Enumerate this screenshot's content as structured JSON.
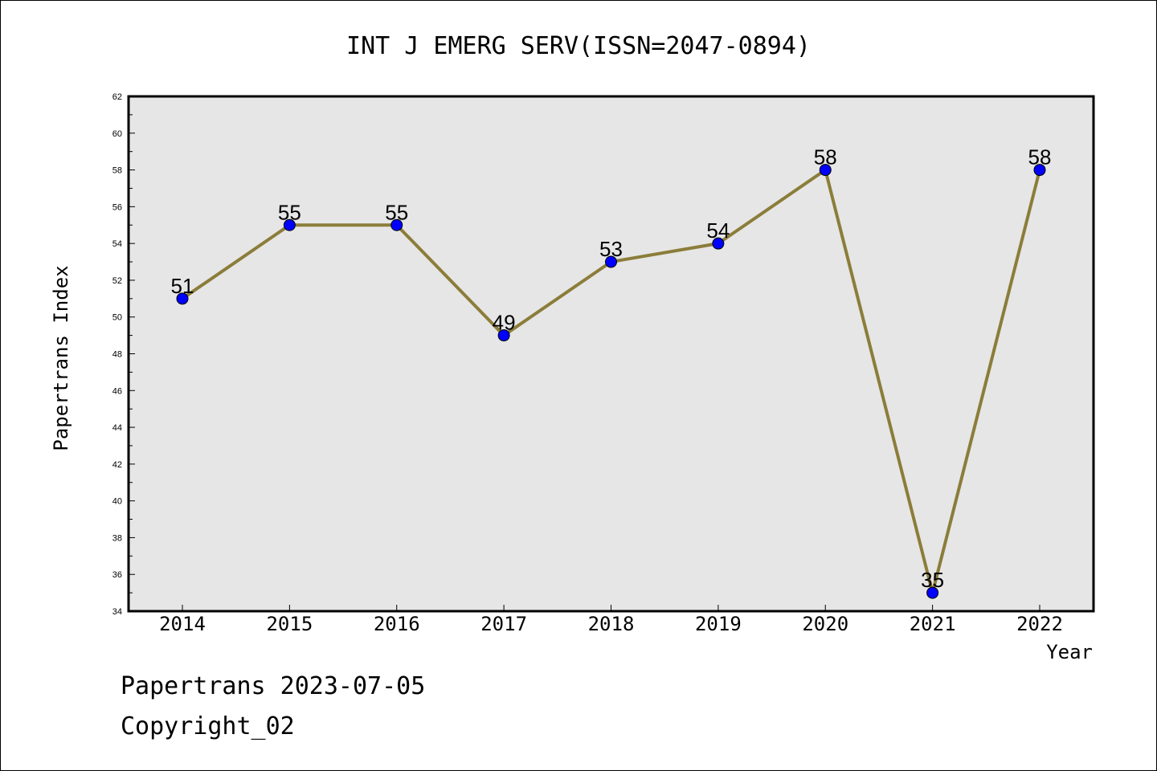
{
  "chart_data": {
    "type": "line",
    "title": "INT J EMERG SERV(ISSN=2047-0894)",
    "xlabel": "Year",
    "ylabel": "Papertrans Index",
    "categories": [
      "2014",
      "2015",
      "2016",
      "2017",
      "2018",
      "2019",
      "2020",
      "2021",
      "2022"
    ],
    "series": [
      {
        "values": [
          51,
          55,
          55,
          49,
          53,
          54,
          58,
          35,
          58
        ]
      }
    ],
    "ylim": [
      34,
      62
    ],
    "yticks": [
      34,
      36,
      38,
      40,
      42,
      44,
      46,
      48,
      50,
      52,
      54,
      56,
      58,
      60,
      62
    ],
    "grid": false,
    "plot_background": "#e6e6e6",
    "line_color": "#8b7d3a",
    "marker_color": "#0000ff"
  },
  "footer": {
    "line1": "Papertrans 2023-07-05",
    "line2": "Copyright_02"
  }
}
